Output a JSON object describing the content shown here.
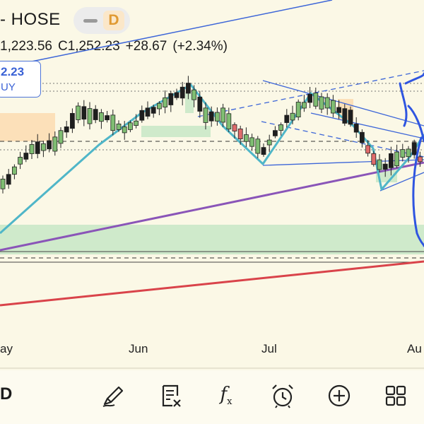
{
  "header": {
    "title": "- HOSE",
    "interval": "D",
    "ohlc": {
      "low": "1,223.56",
      "close": "C1,252.23",
      "change": "+28.67",
      "change_pct": "(+2.34%)"
    }
  },
  "price_label": {
    "value": "2.23",
    "unit": "UY"
  },
  "x_axis": {
    "labels": [
      "ay",
      "Jun",
      "Jul",
      "Au"
    ]
  },
  "toolbar": {
    "interval": "D",
    "items": [
      "draw-pen-icon",
      "indicators-icon",
      "fx-icon",
      "alarm-icon",
      "add-icon",
      "grid-icon"
    ],
    "fx_label": "f",
    "fx_sub": "x"
  },
  "colors": {
    "background": "#fbf8e6",
    "bull_candle": "#7fbd72",
    "bear_candle": "#e06b6b",
    "cyan_trend": "#4fb6c8",
    "blue_line": "#3d66d8",
    "purple_line": "#8a55b8",
    "red_line": "#d9434a",
    "zone_green": "#cfeacb",
    "zone_orange": "#fbdcb0"
  }
}
